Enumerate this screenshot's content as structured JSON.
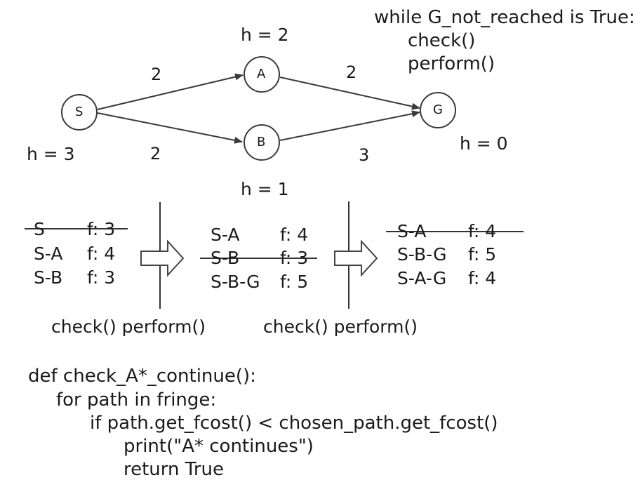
{
  "pseudo_loop": [
    "while G_not_reached is True:",
    "check()",
    "perform()"
  ],
  "graph": {
    "nodes": [
      {
        "id": "S",
        "h_label": "h = 3"
      },
      {
        "id": "A",
        "h_label": "h = 2"
      },
      {
        "id": "B",
        "h_label": "h = 1"
      },
      {
        "id": "G",
        "h_label": "h = 0"
      }
    ],
    "edges": [
      {
        "from": "S",
        "to": "A",
        "cost": "2"
      },
      {
        "from": "S",
        "to": "B",
        "cost": "2"
      },
      {
        "from": "A",
        "to": "G",
        "cost": "2"
      },
      {
        "from": "B",
        "to": "G",
        "cost": "3"
      }
    ]
  },
  "fringe_steps": [
    {
      "rows": [
        {
          "path": "S",
          "f": "f: 3",
          "struck": true
        },
        {
          "path": "S-A",
          "f": "f: 4",
          "struck": false
        },
        {
          "path": "S-B",
          "f": "f: 3",
          "struck": false
        }
      ]
    },
    {
      "rows": [
        {
          "path": "S-A",
          "f": "f: 4",
          "struck": false
        },
        {
          "path": "S-B",
          "f": "f: 3",
          "struck": true
        },
        {
          "path": "S-B-G",
          "f": "f: 5",
          "struck": false
        }
      ]
    },
    {
      "rows": [
        {
          "path": "S-A",
          "f": "f: 4",
          "struck": true
        },
        {
          "path": "S-B-G",
          "f": "f: 5",
          "struck": false
        },
        {
          "path": "S-A-G",
          "f": "f: 4",
          "struck": false
        }
      ]
    }
  ],
  "transition_labels": [
    "check() perform()",
    "check() perform()"
  ],
  "code_lines": [
    "def check_A*_continue():",
    "for path in fringe:",
    "if path.get_fcost() < chosen_path.get_fcost()",
    "print(\"A* continues\")",
    "return True"
  ]
}
